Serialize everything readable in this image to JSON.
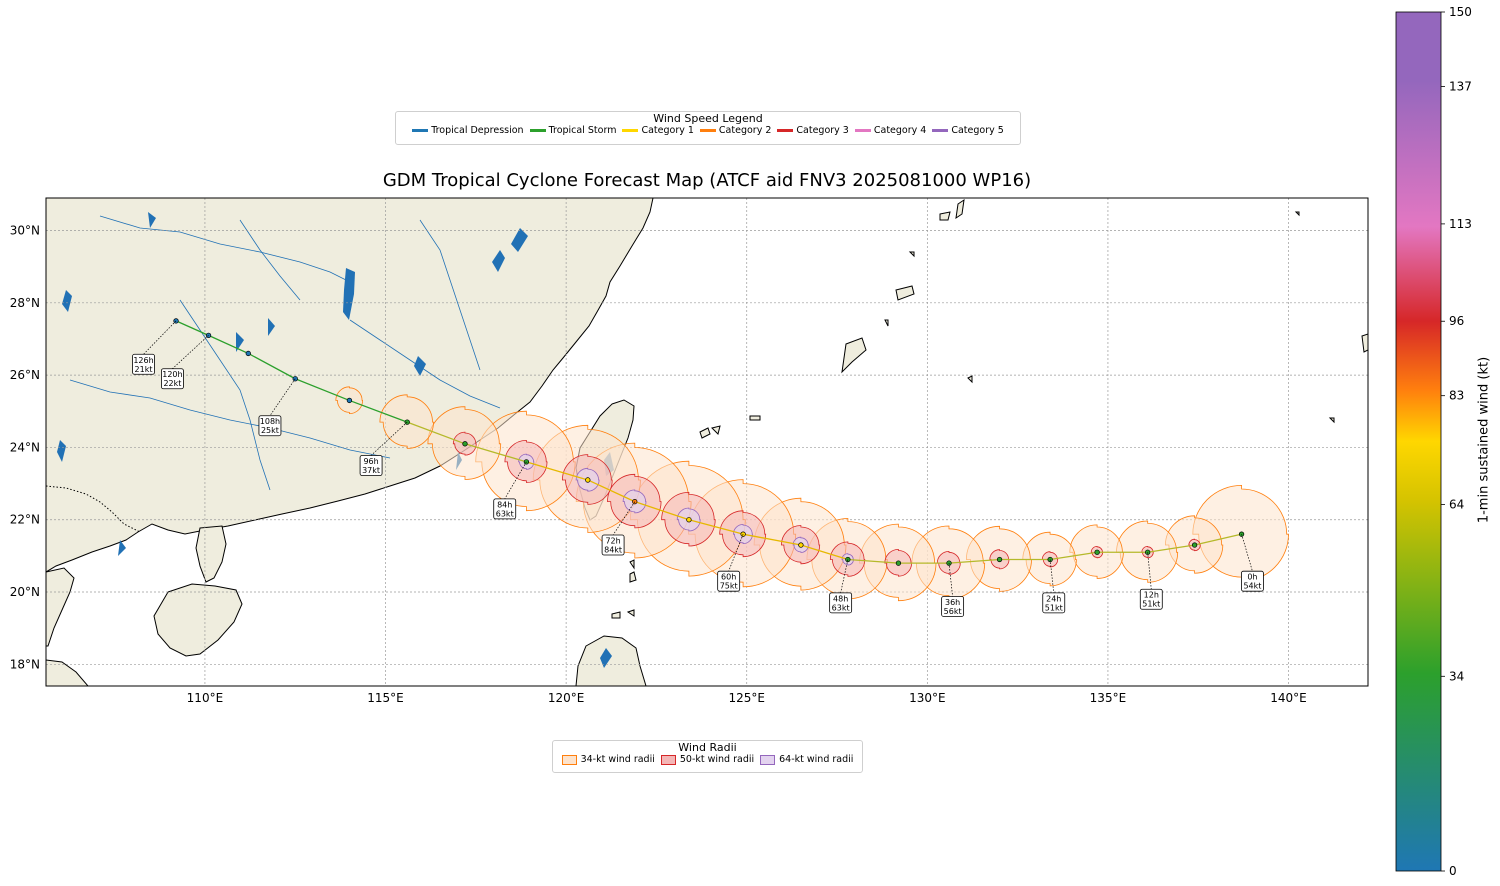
{
  "title": "GDM Tropical Cyclone Forecast Map (ATCF aid FNV3 2025081000 WP16)",
  "wind_speed_legend": {
    "title": "Wind Speed Legend",
    "items": [
      {
        "label": "Tropical Depression",
        "color": "#1f77b4"
      },
      {
        "label": "Tropical Storm",
        "color": "#2ca02c"
      },
      {
        "label": "Category 1",
        "color": "#ffd700"
      },
      {
        "label": "Category 2",
        "color": "#ff7f0e"
      },
      {
        "label": "Category 3",
        "color": "#d62728"
      },
      {
        "label": "Category 4",
        "color": "#e377c2"
      },
      {
        "label": "Category 5",
        "color": "#9467bd"
      }
    ]
  },
  "wind_radii_legend": {
    "title": "Wind Radii",
    "items": [
      {
        "label": "34-kt wind radii",
        "fill": "#fde3cc",
        "edge": "#ff7f0e"
      },
      {
        "label": "50-kt wind radii",
        "fill": "#f4b6b6",
        "edge": "#d62728"
      },
      {
        "label": "64-kt wind radii",
        "fill": "#e3d3ef",
        "edge": "#9467bd"
      }
    ]
  },
  "axes": {
    "lon_range": [
      105.6,
      142.2
    ],
    "lat_range": [
      17.4,
      30.9
    ],
    "lon_ticks": [
      "110°E",
      "115°E",
      "120°E",
      "125°E",
      "130°E",
      "135°E",
      "140°E"
    ],
    "lat_ticks": [
      "18°N",
      "20°N",
      "22°N",
      "24°N",
      "26°N",
      "28°N",
      "30°N"
    ],
    "grid": true
  },
  "colorbar": {
    "label": "1-min sustained wind (kt)",
    "range": [
      0,
      150
    ],
    "ticks": [
      "0",
      "34",
      "64",
      "83",
      "96",
      "113",
      "137",
      "150"
    ],
    "colors": [
      "#1f77b4",
      "#2ca02c",
      "#ffd700",
      "#ff7f0e",
      "#d62728",
      "#e377c2",
      "#9467bd"
    ]
  },
  "map_colors": {
    "land": "#efedde",
    "ocean": "#ffffff",
    "lakes": "#2171b5",
    "coast": "#000000"
  },
  "track": [
    {
      "lon": 138.7,
      "lat": 21.6,
      "wind": 54
    },
    {
      "lon": 137.4,
      "lat": 21.3,
      "wind": 53
    },
    {
      "lon": 136.1,
      "lat": 21.1,
      "wind": 51
    },
    {
      "lon": 134.7,
      "lat": 21.1,
      "wind": 51
    },
    {
      "lon": 133.4,
      "lat": 20.9,
      "wind": 51
    },
    {
      "lon": 132.0,
      "lat": 20.9,
      "wind": 53
    },
    {
      "lon": 130.6,
      "lat": 20.8,
      "wind": 56
    },
    {
      "lon": 129.2,
      "lat": 20.8,
      "wind": 60
    },
    {
      "lon": 127.8,
      "lat": 20.9,
      "wind": 63
    },
    {
      "lon": 126.5,
      "lat": 21.3,
      "wind": 70
    },
    {
      "lon": 124.9,
      "lat": 21.6,
      "wind": 75
    },
    {
      "lon": 123.4,
      "lat": 22.0,
      "wind": 80
    },
    {
      "lon": 121.9,
      "lat": 22.5,
      "wind": 84
    },
    {
      "lon": 120.6,
      "lat": 23.1,
      "wind": 75
    },
    {
      "lon": 118.9,
      "lat": 23.6,
      "wind": 63
    },
    {
      "lon": 117.2,
      "lat": 24.1,
      "wind": 50
    },
    {
      "lon": 115.6,
      "lat": 24.7,
      "wind": 37
    },
    {
      "lon": 114.0,
      "lat": 25.3,
      "wind": 30
    },
    {
      "lon": 112.5,
      "lat": 25.9,
      "wind": 25
    },
    {
      "lon": 111.2,
      "lat": 26.6,
      "wind": 23
    },
    {
      "lon": 110.1,
      "lat": 27.1,
      "wind": 22
    },
    {
      "lon": 109.2,
      "lat": 27.5,
      "wind": 21
    }
  ],
  "forecast_labels": [
    {
      "hour": "0h",
      "wind": "54kt",
      "lon": 138.7,
      "lat": 21.6,
      "llon": 139.0,
      "llat": 20.3
    },
    {
      "hour": "12h",
      "wind": "51kt",
      "lon": 136.1,
      "lat": 21.1,
      "llon": 136.2,
      "llat": 19.8
    },
    {
      "hour": "24h",
      "wind": "51kt",
      "lon": 133.4,
      "lat": 20.9,
      "llon": 133.5,
      "llat": 19.7
    },
    {
      "hour": "36h",
      "wind": "56kt",
      "lon": 130.6,
      "lat": 20.8,
      "llon": 130.7,
      "llat": 19.6
    },
    {
      "hour": "48h",
      "wind": "63kt",
      "lon": 127.8,
      "lat": 20.9,
      "llon": 127.6,
      "llat": 19.7
    },
    {
      "hour": "60h",
      "wind": "75kt",
      "lon": 124.9,
      "lat": 21.6,
      "llon": 124.5,
      "llat": 20.3
    },
    {
      "hour": "72h",
      "wind": "84kt",
      "lon": 121.9,
      "lat": 22.5,
      "llon": 121.3,
      "llat": 21.3
    },
    {
      "hour": "84h",
      "wind": "63kt",
      "lon": 118.9,
      "lat": 23.6,
      "llon": 118.3,
      "llat": 22.3
    },
    {
      "hour": "96h",
      "wind": "37kt",
      "lon": 115.6,
      "lat": 24.7,
      "llon": 114.6,
      "llat": 23.5
    },
    {
      "hour": "108h",
      "wind": "25kt",
      "lon": 112.5,
      "lat": 25.9,
      "llon": 111.8,
      "llat": 24.6
    },
    {
      "hour": "120h",
      "wind": "22kt",
      "lon": 110.1,
      "lat": 27.1,
      "llon": 109.1,
      "llat": 25.9
    },
    {
      "hour": "126h",
      "wind": "21kt",
      "lon": 109.2,
      "lat": 27.5,
      "llon": 108.3,
      "llat": 26.3
    }
  ],
  "wind_radii": [
    {
      "lon": 138.7,
      "lat": 21.6,
      "r34": 1.25,
      "r50": 0,
      "r64": 0
    },
    {
      "lon": 137.4,
      "lat": 21.3,
      "r34": 0.75,
      "r50": 0.15,
      "r64": 0
    },
    {
      "lon": 136.1,
      "lat": 21.1,
      "r34": 0.8,
      "r50": 0.15,
      "r64": 0
    },
    {
      "lon": 134.7,
      "lat": 21.1,
      "r34": 0.7,
      "r50": 0.15,
      "r64": 0
    },
    {
      "lon": 133.4,
      "lat": 20.9,
      "r34": 0.7,
      "r50": 0.2,
      "r64": 0
    },
    {
      "lon": 132.0,
      "lat": 20.9,
      "r34": 0.85,
      "r50": 0.25,
      "r64": 0
    },
    {
      "lon": 130.6,
      "lat": 20.8,
      "r34": 0.95,
      "r50": 0.3,
      "r64": 0
    },
    {
      "lon": 129.2,
      "lat": 20.8,
      "r34": 1.0,
      "r50": 0.35,
      "r64": 0
    },
    {
      "lon": 127.8,
      "lat": 20.9,
      "r34": 1.05,
      "r50": 0.45,
      "r64": 0.15
    },
    {
      "lon": 126.5,
      "lat": 21.3,
      "r34": 1.2,
      "r50": 0.5,
      "r64": 0.2
    },
    {
      "lon": 124.9,
      "lat": 21.6,
      "r34": 1.4,
      "r50": 0.6,
      "r64": 0.25
    },
    {
      "lon": 123.4,
      "lat": 22.0,
      "r34": 1.5,
      "r50": 0.7,
      "r64": 0.3
    },
    {
      "lon": 121.9,
      "lat": 22.5,
      "r34": 1.5,
      "r50": 0.7,
      "r64": 0.3
    },
    {
      "lon": 120.6,
      "lat": 23.1,
      "r34": 1.4,
      "r50": 0.65,
      "r64": 0.3
    },
    {
      "lon": 118.9,
      "lat": 23.6,
      "r34": 1.3,
      "r50": 0.55,
      "r64": 0.2
    },
    {
      "lon": 117.2,
      "lat": 24.1,
      "r34": 0.95,
      "r50": 0.3,
      "r64": 0
    },
    {
      "lon": 115.6,
      "lat": 24.7,
      "r34": 0.7,
      "r50": 0,
      "r64": 0
    },
    {
      "lon": 114.0,
      "lat": 25.3,
      "r34": 0.35,
      "r50": 0,
      "r64": 0
    }
  ]
}
